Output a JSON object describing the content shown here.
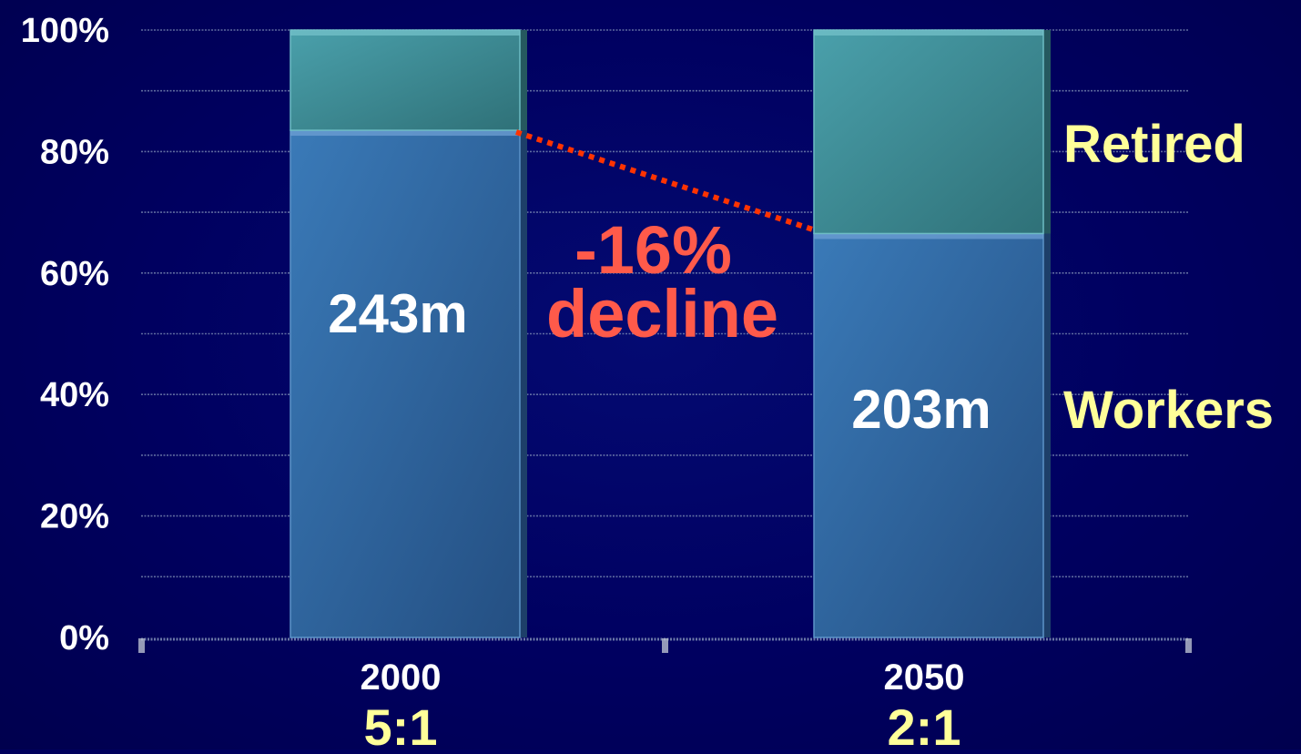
{
  "chart_data": {
    "type": "bar",
    "stacked": true,
    "percent_scale": true,
    "categories": [
      "2000",
      "2050"
    ],
    "category_ratios": [
      "5:1",
      "2:1"
    ],
    "series": [
      {
        "name": "Workers",
        "values": [
          83.5,
          66.5
        ],
        "labels": [
          "243m",
          "203m"
        ],
        "color": "#2f6ca5"
      },
      {
        "name": "Retired",
        "values": [
          16.5,
          33.5
        ],
        "labels": [
          "",
          ""
        ],
        "color": "#3d8e98"
      }
    ],
    "y_ticks": [
      "0%",
      "20%",
      "40%",
      "60%",
      "80%",
      "100%"
    ],
    "ylim": [
      0,
      100
    ],
    "grid": true,
    "annotation": {
      "line1": "-16%",
      "line2": "decline",
      "color": "#ff5a4a",
      "connector_color": "#ff3300",
      "connector_style": "dotted"
    },
    "legend_position": "right",
    "colors": {
      "background": "#000060",
      "axis_text": "#ffffff",
      "bar_label_text": "#ffffff",
      "legend_text": "#ffff99",
      "ratio_text": "#ffff99",
      "grid": "#7f8fb5"
    }
  }
}
